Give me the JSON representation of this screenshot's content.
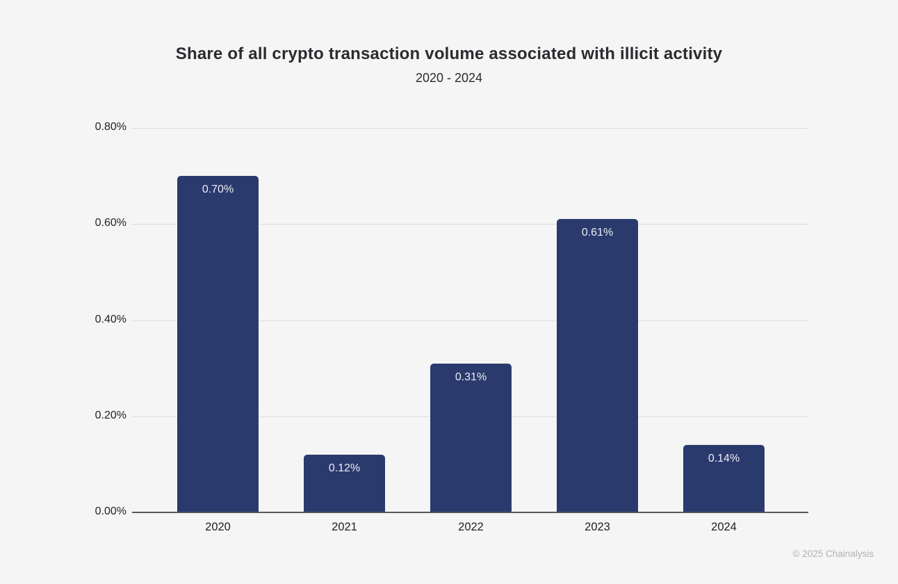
{
  "chart_data": {
    "type": "bar",
    "title": "Share of all crypto transaction volume associated with illicit activity",
    "subtitle": "2020 - 2024",
    "categories": [
      "2020",
      "2021",
      "2022",
      "2023",
      "2024"
    ],
    "values": [
      0.7,
      0.12,
      0.31,
      0.61,
      0.14
    ],
    "value_labels": [
      "0.70%",
      "0.12%",
      "0.31%",
      "0.61%",
      "0.14%"
    ],
    "xlabel": "",
    "ylabel": "",
    "ylim": [
      0,
      0.8
    ],
    "yticks": [
      0,
      0.2,
      0.4,
      0.6,
      0.8
    ],
    "ytick_labels": [
      "0.00%",
      "0.20%",
      "0.40%",
      "0.60%",
      "0.80%"
    ],
    "grid": true,
    "legend": "none",
    "bar_color": "#2b3a6d",
    "bar_label_color": "#eceef5",
    "background_color": "#f5f5f5",
    "gridline_color": "#dcdcdc",
    "axis_color": "#55575c"
  },
  "footer": {
    "copyright": "© 2025 Chainalysis"
  }
}
